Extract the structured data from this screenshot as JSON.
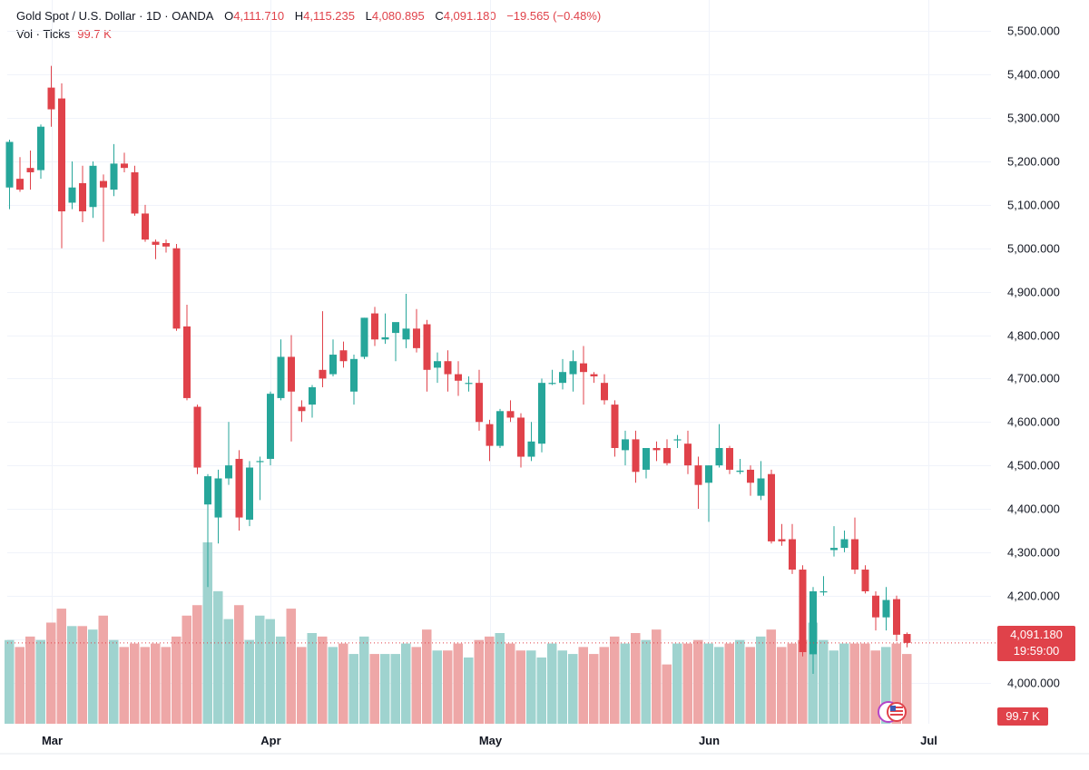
{
  "legend": {
    "title": "Gold Spot / U.S. Dollar · 1D · OANDA",
    "o_label": "O",
    "o_value": "4,111.710",
    "h_label": "H",
    "h_value": "4,115.235",
    "l_label": "L",
    "l_value": "4,080.895",
    "c_label": "C",
    "c_value": "4,091.180",
    "change": "−19.565 (−0.48%)",
    "vol_label": "Vol · Ticks",
    "vol_value": "99.7 K"
  },
  "badges": {
    "last_price": "4,091.180",
    "countdown": "19:59:00",
    "volume": "99.7 K"
  },
  "colors": {
    "up": "#26a69a",
    "down": "#e0424a",
    "up_vol": "#9fd3cf",
    "down_vol": "#eea7a7"
  },
  "icons": {
    "flag": "us-flag-icon"
  },
  "chart_data": {
    "type": "candlestick",
    "x_ticks": [
      "Mar",
      "Apr",
      "May",
      "Jun",
      "Jul"
    ],
    "y_ticks": [
      "4,000.000",
      "4,100.000",
      "4,200.000",
      "4,300.000",
      "4,400.000",
      "4,500.000",
      "4,600.000",
      "4,700.000",
      "4,800.000",
      "4,900.000",
      "5,000.000",
      "5,100.000",
      "5,200.000",
      "5,300.000",
      "5,400.000",
      "5,500.000"
    ],
    "ylim": [
      3905,
      5530
    ],
    "last_price": 4091.18,
    "grid": true,
    "candles": [
      {
        "o": 5140,
        "h": 5250,
        "l": 5090,
        "c": 5245,
        "v": 24
      },
      {
        "o": 5160,
        "h": 5210,
        "l": 5130,
        "c": 5135,
        "v": 22
      },
      {
        "o": 5185,
        "h": 5225,
        "l": 5135,
        "c": 5175,
        "v": 25
      },
      {
        "o": 5180,
        "h": 5285,
        "l": 5160,
        "c": 5280,
        "v": 24
      },
      {
        "o": 5370,
        "h": 5420,
        "l": 5280,
        "c": 5320,
        "v": 29
      },
      {
        "o": 5345,
        "h": 5380,
        "l": 5000,
        "c": 5085,
        "v": 33
      },
      {
        "o": 5105,
        "h": 5200,
        "l": 5090,
        "c": 5140,
        "v": 28
      },
      {
        "o": 5150,
        "h": 5190,
        "l": 5060,
        "c": 5085,
        "v": 28
      },
      {
        "o": 5095,
        "h": 5200,
        "l": 5070,
        "c": 5190,
        "v": 27
      },
      {
        "o": 5155,
        "h": 5170,
        "l": 5015,
        "c": 5140,
        "v": 31
      },
      {
        "o": 5135,
        "h": 5240,
        "l": 5120,
        "c": 5195,
        "v": 24
      },
      {
        "o": 5195,
        "h": 5220,
        "l": 5175,
        "c": 5185,
        "v": 22
      },
      {
        "o": 5175,
        "h": 5190,
        "l": 5075,
        "c": 5080,
        "v": 23
      },
      {
        "o": 5080,
        "h": 5100,
        "l": 5015,
        "c": 5020,
        "v": 22
      },
      {
        "o": 5015,
        "h": 5020,
        "l": 4975,
        "c": 5008,
        "v": 23
      },
      {
        "o": 5012,
        "h": 5020,
        "l": 4990,
        "c": 5004,
        "v": 22
      },
      {
        "o": 5000,
        "h": 5010,
        "l": 4810,
        "c": 4815,
        "v": 25
      },
      {
        "o": 4820,
        "h": 4870,
        "l": 4650,
        "c": 4655,
        "v": 31
      },
      {
        "o": 4635,
        "h": 4640,
        "l": 4480,
        "c": 4495,
        "v": 34
      },
      {
        "o": 4410,
        "h": 4480,
        "l": 4220,
        "c": 4475,
        "v": 52
      },
      {
        "o": 4380,
        "h": 4490,
        "l": 4320,
        "c": 4470,
        "v": 38
      },
      {
        "o": 4470,
        "h": 4600,
        "l": 4455,
        "c": 4500,
        "v": 30
      },
      {
        "o": 4515,
        "h": 4535,
        "l": 4350,
        "c": 4380,
        "v": 34
      },
      {
        "o": 4375,
        "h": 4510,
        "l": 4360,
        "c": 4495,
        "v": 24
      },
      {
        "o": 4510,
        "h": 4520,
        "l": 4420,
        "c": 4510,
        "v": 31
      },
      {
        "o": 4515,
        "h": 4670,
        "l": 4500,
        "c": 4665,
        "v": 30
      },
      {
        "o": 4655,
        "h": 4790,
        "l": 4650,
        "c": 4750,
        "v": 25
      },
      {
        "o": 4750,
        "h": 4800,
        "l": 4555,
        "c": 4670,
        "v": 33
      },
      {
        "o": 4635,
        "h": 4650,
        "l": 4600,
        "c": 4625,
        "v": 22
      },
      {
        "o": 4640,
        "h": 4685,
        "l": 4610,
        "c": 4680,
        "v": 26
      },
      {
        "o": 4720,
        "h": 4855,
        "l": 4680,
        "c": 4700,
        "v": 25
      },
      {
        "o": 4710,
        "h": 4790,
        "l": 4705,
        "c": 4755,
        "v": 22
      },
      {
        "o": 4765,
        "h": 4785,
        "l": 4725,
        "c": 4740,
        "v": 23
      },
      {
        "o": 4670,
        "h": 4755,
        "l": 4640,
        "c": 4745,
        "v": 20
      },
      {
        "o": 4750,
        "h": 4840,
        "l": 4745,
        "c": 4840,
        "v": 25
      },
      {
        "o": 4850,
        "h": 4865,
        "l": 4775,
        "c": 4790,
        "v": 20
      },
      {
        "o": 4790,
        "h": 4850,
        "l": 4780,
        "c": 4795,
        "v": 20
      },
      {
        "o": 4805,
        "h": 4825,
        "l": 4740,
        "c": 4830,
        "v": 20
      },
      {
        "o": 4790,
        "h": 4895,
        "l": 4770,
        "c": 4815,
        "v": 23
      },
      {
        "o": 4815,
        "h": 4860,
        "l": 4760,
        "c": 4770,
        "v": 22
      },
      {
        "o": 4825,
        "h": 4835,
        "l": 4670,
        "c": 4720,
        "v": 27
      },
      {
        "o": 4725,
        "h": 4760,
        "l": 4690,
        "c": 4740,
        "v": 21
      },
      {
        "o": 4740,
        "h": 4765,
        "l": 4670,
        "c": 4710,
        "v": 21
      },
      {
        "o": 4710,
        "h": 4740,
        "l": 4660,
        "c": 4695,
        "v": 23
      },
      {
        "o": 4690,
        "h": 4705,
        "l": 4670,
        "c": 4690,
        "v": 19
      },
      {
        "o": 4690,
        "h": 4720,
        "l": 4580,
        "c": 4600,
        "v": 24
      },
      {
        "o": 4595,
        "h": 4605,
        "l": 4510,
        "c": 4545,
        "v": 25
      },
      {
        "o": 4545,
        "h": 4630,
        "l": 4540,
        "c": 4625,
        "v": 26
      },
      {
        "o": 4625,
        "h": 4650,
        "l": 4600,
        "c": 4610,
        "v": 23
      },
      {
        "o": 4610,
        "h": 4620,
        "l": 4495,
        "c": 4520,
        "v": 21
      },
      {
        "o": 4520,
        "h": 4600,
        "l": 4510,
        "c": 4555,
        "v": 21
      },
      {
        "o": 4550,
        "h": 4700,
        "l": 4530,
        "c": 4690,
        "v": 19
      },
      {
        "o": 4690,
        "h": 4720,
        "l": 4685,
        "c": 4690,
        "v": 23
      },
      {
        "o": 4690,
        "h": 4745,
        "l": 4675,
        "c": 4715,
        "v": 21
      },
      {
        "o": 4710,
        "h": 4765,
        "l": 4670,
        "c": 4740,
        "v": 20
      },
      {
        "o": 4735,
        "h": 4775,
        "l": 4640,
        "c": 4715,
        "v": 22
      },
      {
        "o": 4710,
        "h": 4715,
        "l": 4690,
        "c": 4705,
        "v": 20
      },
      {
        "o": 4690,
        "h": 4710,
        "l": 4640,
        "c": 4650,
        "v": 22
      },
      {
        "o": 4640,
        "h": 4650,
        "l": 4520,
        "c": 4540,
        "v": 25
      },
      {
        "o": 4535,
        "h": 4580,
        "l": 4500,
        "c": 4560,
        "v": 23
      },
      {
        "o": 4560,
        "h": 4580,
        "l": 4460,
        "c": 4485,
        "v": 26
      },
      {
        "o": 4490,
        "h": 4535,
        "l": 4470,
        "c": 4540,
        "v": 24
      },
      {
        "o": 4540,
        "h": 4555,
        "l": 4510,
        "c": 4535,
        "v": 27
      },
      {
        "o": 4540,
        "h": 4560,
        "l": 4500,
        "c": 4505,
        "v": 17
      },
      {
        "o": 4560,
        "h": 4570,
        "l": 4540,
        "c": 4560,
        "v": 23
      },
      {
        "o": 4550,
        "h": 4580,
        "l": 4480,
        "c": 4500,
        "v": 23
      },
      {
        "o": 4500,
        "h": 4520,
        "l": 4400,
        "c": 4455,
        "v": 24
      },
      {
        "o": 4460,
        "h": 4500,
        "l": 4370,
        "c": 4500,
        "v": 23
      },
      {
        "o": 4500,
        "h": 4595,
        "l": 4495,
        "c": 4540,
        "v": 22
      },
      {
        "o": 4540,
        "h": 4545,
        "l": 4480,
        "c": 4490,
        "v": 23
      },
      {
        "o": 4485,
        "h": 4515,
        "l": 4480,
        "c": 4488,
        "v": 24
      },
      {
        "o": 4490,
        "h": 4500,
        "l": 4430,
        "c": 4460,
        "v": 22
      },
      {
        "o": 4430,
        "h": 4510,
        "l": 4420,
        "c": 4470,
        "v": 25
      },
      {
        "o": 4480,
        "h": 4490,
        "l": 4320,
        "c": 4325,
        "v": 27
      },
      {
        "o": 4330,
        "h": 4365,
        "l": 4315,
        "c": 4325,
        "v": 22
      },
      {
        "o": 4330,
        "h": 4365,
        "l": 4250,
        "c": 4260,
        "v": 23
      },
      {
        "o": 4260,
        "h": 4270,
        "l": 4060,
        "c": 4070,
        "v": 24
      },
      {
        "o": 4065,
        "h": 4220,
        "l": 4020,
        "c": 4210,
        "v": 29
      },
      {
        "o": 4210,
        "h": 4245,
        "l": 4200,
        "c": 4210,
        "v": 24
      },
      {
        "o": 4305,
        "h": 4360,
        "l": 4290,
        "c": 4310,
        "v": 21
      },
      {
        "o": 4310,
        "h": 4350,
        "l": 4300,
        "c": 4330,
        "v": 23
      },
      {
        "o": 4330,
        "h": 4380,
        "l": 4250,
        "c": 4260,
        "v": 23
      },
      {
        "o": 4260,
        "h": 4270,
        "l": 4205,
        "c": 4210,
        "v": 23
      },
      {
        "o": 4200,
        "h": 4210,
        "l": 4120,
        "c": 4150,
        "v": 21
      },
      {
        "o": 4150,
        "h": 4220,
        "l": 4120,
        "c": 4190,
        "v": 22
      },
      {
        "o": 4192,
        "h": 4200,
        "l": 4095,
        "c": 4110,
        "v": 23
      },
      {
        "o": 4111.71,
        "h": 4115.235,
        "l": 4080.895,
        "c": 4091.18,
        "v": 20
      }
    ]
  }
}
